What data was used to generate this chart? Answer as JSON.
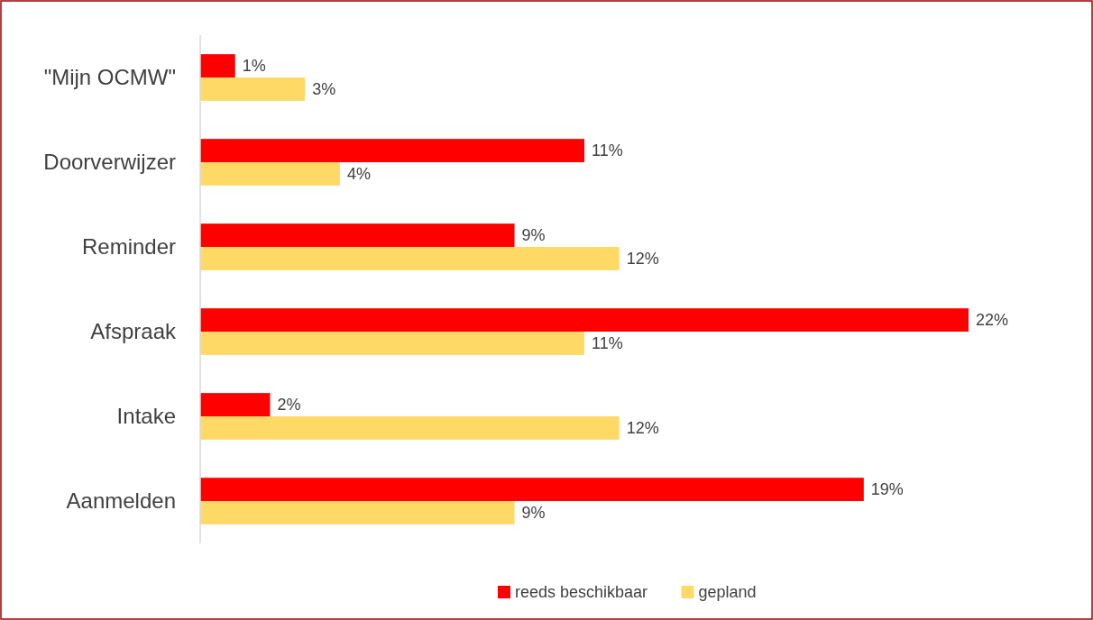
{
  "chart_data": {
    "type": "bar",
    "orientation": "horizontal",
    "categories": [
      "\"Mijn OCMW\"",
      "Doorverwijzer",
      "Reminder",
      "Afspraak",
      "Intake",
      "Aanmelden"
    ],
    "series": [
      {
        "name": "reeds beschikbaar",
        "color": "#ff0000",
        "values": [
          1,
          11,
          9,
          22,
          2,
          19
        ],
        "value_labels": [
          "1%",
          "11%",
          "9%",
          "22%",
          "2%",
          "19%"
        ]
      },
      {
        "name": "gepland",
        "color": "#ffd966",
        "values": [
          3,
          4,
          12,
          11,
          12,
          9
        ],
        "value_labels": [
          "3%",
          "4%",
          "12%",
          "11%",
          "12%",
          "9%"
        ]
      }
    ],
    "legend": "bottom",
    "grid": false
  }
}
